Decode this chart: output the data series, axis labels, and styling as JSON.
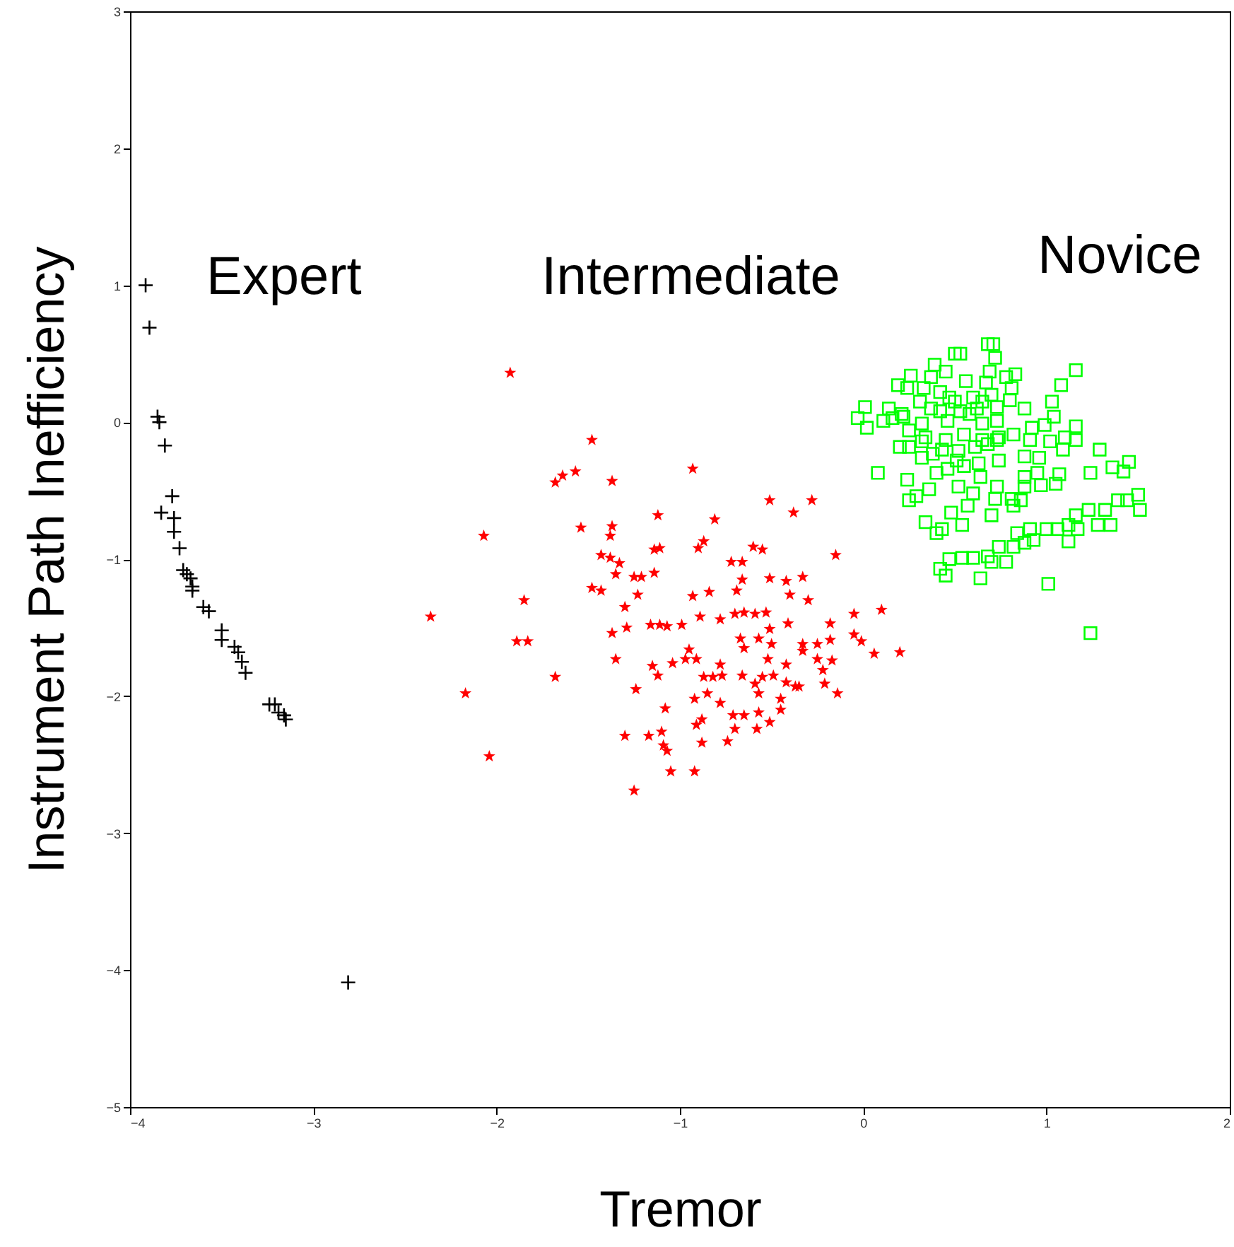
{
  "chart_data": {
    "type": "scatter",
    "xlabel": "Tremor",
    "ylabel": "Instrument Path Inefficiency",
    "xlim": [
      -4,
      2
    ],
    "xticks": [
      -4,
      -3,
      -2,
      -1,
      0,
      1,
      2
    ],
    "ylim": [
      -5,
      3
    ],
    "yticks": [
      -5,
      -4,
      -3,
      -2,
      -1,
      0,
      1,
      2,
      3
    ],
    "grid": false,
    "annotations": [
      "Expert",
      "Intermediate",
      "Novice"
    ],
    "series": [
      {
        "color": "#000000",
        "marker": "cross",
        "x": [
          -3.915,
          -3.894,
          -3.85,
          -3.84,
          -3.81,
          -3.83,
          -3.77,
          -3.76,
          -3.76,
          -3.73,
          -3.71,
          -3.69,
          -3.67,
          -3.66,
          -3.66,
          -3.6,
          -3.57,
          -3.5,
          -3.5,
          -3.43,
          -3.41,
          -3.39,
          -3.37,
          -3.24,
          -3.21,
          -3.19,
          -3.16,
          -3.15,
          -2.81
        ],
        "values": [
          1.0,
          0.69,
          0.04,
          0.0,
          -0.17,
          -0.66,
          -0.54,
          -0.7,
          -0.8,
          -0.92,
          -1.08,
          -1.11,
          -1.14,
          -1.2,
          -1.23,
          -1.35,
          -1.38,
          -1.52,
          -1.59,
          -1.64,
          -1.68,
          -1.75,
          -1.83,
          -2.06,
          -2.06,
          -2.12,
          -2.14,
          -2.17,
          -4.09
        ]
      },
      {
        "color": "#ff0000",
        "marker": "star",
        "x": [
          -1.926,
          -1.48,
          -1.68,
          -1.64,
          -1.57,
          -1.37,
          -0.93,
          -2.07,
          -1.54,
          -1.37,
          -1.38,
          -1.12,
          -0.81,
          -0.51,
          -0.38,
          -0.28,
          -1.43,
          -1.38,
          -1.33,
          -1.35,
          -1.14,
          -1.11,
          -0.9,
          -0.87,
          -0.72,
          -0.66,
          -0.6,
          -0.55,
          -0.15,
          -1.25,
          -1.21,
          -1.14,
          -1.48,
          -1.43,
          -1.23,
          -0.66,
          -0.69,
          -0.51,
          -0.42,
          -0.33,
          -0.4,
          -0.3,
          -0.93,
          -0.84,
          -1.85,
          -1.3,
          -2.36,
          -0.89,
          -0.78,
          -0.7,
          -0.65,
          -0.59,
          -0.53,
          -0.05,
          0.1,
          -1.29,
          -1.37,
          -1.16,
          -1.11,
          -1.07,
          -0.99,
          -0.41,
          -0.18,
          -0.51,
          -1.89,
          -1.83,
          -0.67,
          -0.57,
          -0.5,
          -0.65,
          -0.33,
          -0.25,
          -0.18,
          -0.05,
          -0.01,
          0.06,
          0.2,
          -1.35,
          -0.95,
          -0.97,
          -0.91,
          -0.52,
          -0.42,
          -0.33,
          -0.25,
          -0.17,
          -0.22,
          -1.15,
          -1.12,
          -1.04,
          -0.78,
          -0.66,
          -0.87,
          -0.82,
          -0.77,
          -0.55,
          -0.49,
          -0.42,
          -0.37,
          -0.21,
          -0.59,
          -1.68,
          -1.24,
          -0.85,
          -0.78,
          -0.92,
          -0.57,
          -0.45,
          -0.45,
          -0.35,
          -0.14,
          -2.17,
          -1.08,
          -0.71,
          -0.65,
          -0.57,
          -0.7,
          -0.58,
          -0.51,
          -0.91,
          -0.88,
          -1.3,
          -1.17,
          -1.1,
          -1.09,
          -1.07,
          -0.88,
          -0.74,
          -2.04,
          -1.05,
          -0.92,
          -1.25
        ],
        "values": [
          0.36,
          -0.13,
          -0.44,
          -0.39,
          -0.36,
          -0.43,
          -0.34,
          -0.83,
          -0.77,
          -0.76,
          -0.83,
          -0.68,
          -0.71,
          -0.57,
          -0.66,
          -0.57,
          -0.97,
          -0.99,
          -1.03,
          -1.11,
          -0.93,
          -0.92,
          -0.92,
          -0.87,
          -1.02,
          -1.02,
          -0.91,
          -0.93,
          -0.97,
          -1.13,
          -1.13,
          -1.1,
          -1.21,
          -1.23,
          -1.26,
          -1.15,
          -1.23,
          -1.14,
          -1.16,
          -1.13,
          -1.26,
          -1.3,
          -1.27,
          -1.24,
          -1.3,
          -1.35,
          -1.42,
          -1.42,
          -1.44,
          -1.4,
          -1.39,
          -1.4,
          -1.39,
          -1.4,
          -1.37,
          -1.5,
          -1.54,
          -1.48,
          -1.48,
          -1.49,
          -1.48,
          -1.47,
          -1.47,
          -1.51,
          -1.6,
          -1.6,
          -1.58,
          -1.58,
          -1.62,
          -1.65,
          -1.62,
          -1.62,
          -1.59,
          -1.55,
          -1.6,
          -1.69,
          -1.68,
          -1.73,
          -1.66,
          -1.73,
          -1.73,
          -1.73,
          -1.77,
          -1.67,
          -1.73,
          -1.74,
          -1.81,
          -1.78,
          -1.85,
          -1.76,
          -1.77,
          -1.85,
          -1.86,
          -1.86,
          -1.85,
          -1.86,
          -1.85,
          -1.9,
          -1.93,
          -1.91,
          -1.91,
          -1.86,
          -1.95,
          -1.98,
          -2.05,
          -2.02,
          -1.98,
          -2.02,
          -2.1,
          -1.93,
          -1.98,
          -1.98,
          -2.09,
          -2.14,
          -2.14,
          -2.12,
          -2.24,
          -2.24,
          -2.19,
          -2.21,
          -2.17,
          -2.29,
          -2.29,
          -2.26,
          -2.36,
          -2.4,
          -2.34,
          -2.33,
          -2.44,
          -2.55,
          -2.55,
          -2.69
        ]
      },
      {
        "color": "#00ff00",
        "marker": "square",
        "x": [
          0.68,
          0.71,
          0.53,
          0.5,
          0.72,
          0.39,
          0.45,
          0.69,
          0.83,
          1.16,
          0.26,
          0.37,
          0.56,
          0.67,
          0.78,
          1.08,
          0.81,
          0.19,
          0.24,
          0.33,
          0.42,
          0.47,
          0.5,
          0.6,
          0.7,
          0.65,
          0.01,
          0.14,
          0.21,
          0.31,
          0.37,
          0.42,
          0.53,
          0.62,
          0.73,
          0.8,
          0.88,
          1.03,
          1.04,
          -0.03,
          0.02,
          0.11,
          0.16,
          0.22,
          0.32,
          0.46,
          0.58,
          0.65,
          0.73,
          0.25,
          0.34,
          0.45,
          0.55,
          0.65,
          0.74,
          0.82,
          0.92,
          0.99,
          1.16,
          0.2,
          0.25,
          0.32,
          0.43,
          0.52,
          0.61,
          0.68,
          0.73,
          0.91,
          1.02,
          1.1,
          1.16,
          0.32,
          0.38,
          0.51,
          0.63,
          0.74,
          0.88,
          0.96,
          1.09,
          1.29,
          0.08,
          0.24,
          0.4,
          0.46,
          0.55,
          0.64,
          0.88,
          0.95,
          1.07,
          1.24,
          1.36,
          1.42,
          1.45,
          0.29,
          0.25,
          0.36,
          0.52,
          0.6,
          0.73,
          0.81,
          0.88,
          0.97,
          1.05,
          0.72,
          0.86,
          0.34,
          0.43,
          0.48,
          0.54,
          0.57,
          0.7,
          0.82,
          1.39,
          1.44,
          1.5,
          1.51,
          0.4,
          0.84,
          0.91,
          1.0,
          1.06,
          1.12,
          1.16,
          1.23,
          1.32,
          1.35,
          1.28,
          1.17,
          0.42,
          0.47,
          0.54,
          0.6,
          0.68,
          0.74,
          0.82,
          0.88,
          0.93,
          1.12,
          0.78,
          0.7,
          0.64,
          1.01,
          1.24,
          0.45
        ],
        "values": [
          0.57,
          0.57,
          0.5,
          0.5,
          0.47,
          0.42,
          0.37,
          0.37,
          0.35,
          0.38,
          0.34,
          0.33,
          0.3,
          0.29,
          0.33,
          0.27,
          0.25,
          0.27,
          0.25,
          0.25,
          0.22,
          0.18,
          0.15,
          0.18,
          0.2,
          0.15,
          0.11,
          0.1,
          0.06,
          0.15,
          0.1,
          0.08,
          0.08,
          0.1,
          0.11,
          0.16,
          0.1,
          0.15,
          0.04,
          0.03,
          -0.04,
          0.01,
          0.03,
          0.04,
          -0.01,
          0.01,
          0.06,
          -0.01,
          0.01,
          -0.06,
          -0.11,
          -0.13,
          -0.09,
          -0.13,
          -0.11,
          -0.09,
          -0.04,
          -0.02,
          -0.03,
          -0.18,
          -0.18,
          -0.14,
          -0.2,
          -0.21,
          -0.18,
          -0.16,
          -0.13,
          -0.13,
          -0.14,
          -0.11,
          -0.13,
          -0.26,
          -0.23,
          -0.28,
          -0.3,
          -0.28,
          -0.25,
          -0.26,
          -0.2,
          -0.2,
          -0.37,
          -0.42,
          -0.37,
          -0.34,
          -0.32,
          -0.4,
          -0.4,
          -0.37,
          -0.38,
          -0.37,
          -0.33,
          -0.36,
          -0.29,
          -0.54,
          -0.57,
          -0.49,
          -0.47,
          -0.52,
          -0.47,
          -0.56,
          -0.47,
          -0.46,
          -0.45,
          -0.56,
          -0.57,
          -0.73,
          -0.78,
          -0.66,
          -0.75,
          -0.61,
          -0.68,
          -0.61,
          -0.57,
          -0.57,
          -0.53,
          -0.64,
          -0.81,
          -0.81,
          -0.78,
          -0.78,
          -0.78,
          -0.75,
          -0.68,
          -0.64,
          -0.64,
          -0.75,
          -0.75,
          -0.78,
          -1.07,
          -1.0,
          -0.99,
          -0.99,
          -0.98,
          -0.91,
          -0.91,
          -0.88,
          -0.86,
          -0.87,
          -1.02,
          -1.02,
          -1.14,
          -1.18,
          -1.54,
          -1.12
        ]
      }
    ]
  }
}
